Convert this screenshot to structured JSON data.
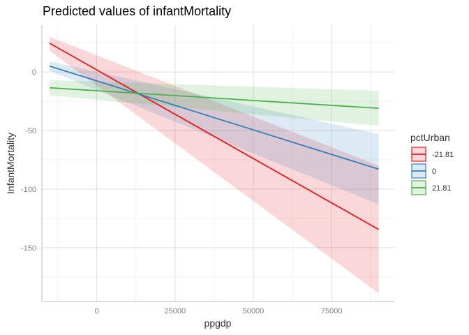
{
  "chart_data": {
    "type": "line",
    "title": "Predicted values of infantMortality",
    "xlabel": "ppgdp",
    "ylabel": "InfantMortality",
    "xlim": [
      -17500,
      95000
    ],
    "ylim": [
      -196,
      40
    ],
    "x_ticks": [
      0,
      25000,
      50000,
      75000
    ],
    "x_tick_labels": [
      "0",
      "25000",
      "50000",
      "75000"
    ],
    "y_ticks": [
      0,
      -50,
      -100,
      -150
    ],
    "y_tick_labels": [
      "0",
      "-50",
      "-100",
      "-150"
    ],
    "grid": true,
    "legend": {
      "title": "pctUrban",
      "position": "right"
    },
    "series": [
      {
        "name": "-21.81",
        "color": "#e41a1c",
        "x": [
          -15000,
          90000
        ],
        "y": [
          24.5,
          -134.5
        ],
        "lower": [
          18,
          -189
        ],
        "upper": [
          30,
          -80
        ]
      },
      {
        "name": "0",
        "color": "#377eb8",
        "x": [
          -15000,
          90000
        ],
        "y": [
          5,
          -83
        ],
        "lower": [
          1,
          -113
        ],
        "upper": [
          9,
          -53
        ]
      },
      {
        "name": "21.81",
        "color": "#4daf4a",
        "x": [
          -15000,
          90000
        ],
        "y": [
          -13.5,
          -31
        ],
        "lower": [
          -20,
          -46
        ],
        "upper": [
          -7,
          -16
        ]
      }
    ]
  }
}
